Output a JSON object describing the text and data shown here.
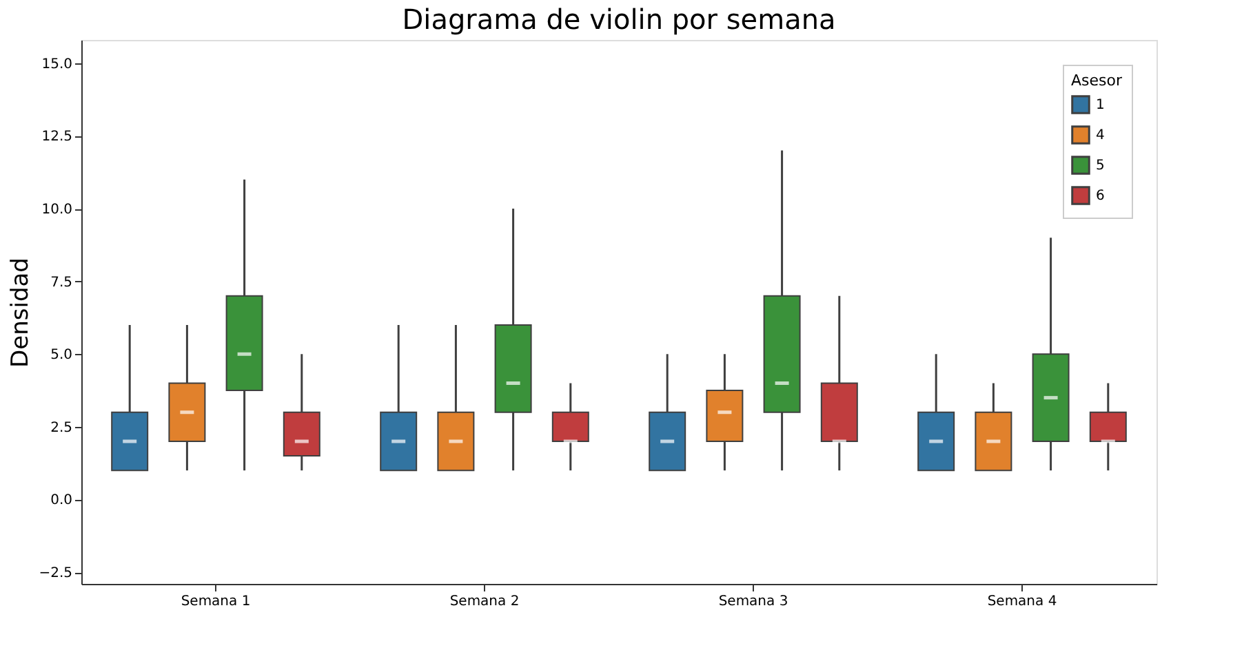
{
  "chart_data": {
    "type": "box",
    "title": "Diagrama de violin por semana",
    "ylabel": "Densidad",
    "legend_title": "Asesor",
    "categories": [
      "Semana 1",
      "Semana 2",
      "Semana 3",
      "Semana 4"
    ],
    "ylim": [
      -2.9,
      15.8
    ],
    "yticks": [
      {
        "value": -2.5,
        "label": "−2.5"
      },
      {
        "value": 0,
        "label": "0.0"
      },
      {
        "value": 2.5,
        "label": "2.5"
      },
      {
        "value": 5,
        "label": "5.0"
      },
      {
        "value": 7.5,
        "label": "7.5"
      },
      {
        "value": 10,
        "label": "10.0"
      },
      {
        "value": 12.5,
        "label": "12.5"
      },
      {
        "value": 15,
        "label": "15.0"
      }
    ],
    "grid": false,
    "legend": "top right",
    "series": [
      {
        "name": "1",
        "color": "#3274a1",
        "boxes": [
          {
            "low": 1,
            "q1": 1,
            "median": 2,
            "q3": 3,
            "high": 6
          },
          {
            "low": 1,
            "q1": 1,
            "median": 2,
            "q3": 3,
            "high": 6
          },
          {
            "low": 1,
            "q1": 1,
            "median": 2,
            "q3": 3,
            "high": 5
          },
          {
            "low": 1,
            "q1": 1,
            "median": 2,
            "q3": 3,
            "high": 5
          }
        ]
      },
      {
        "name": "4",
        "color": "#e1812c",
        "boxes": [
          {
            "low": 1,
            "q1": 2,
            "median": 3,
            "q3": 4,
            "high": 6
          },
          {
            "low": 1,
            "q1": 1,
            "median": 2,
            "q3": 3,
            "high": 6
          },
          {
            "low": 1,
            "q1": 2,
            "median": 3,
            "q3": 3.75,
            "high": 5
          },
          {
            "low": 1,
            "q1": 1,
            "median": 2,
            "q3": 3,
            "high": 4
          }
        ]
      },
      {
        "name": "5",
        "color": "#3a923a",
        "boxes": [
          {
            "low": 1,
            "q1": 3.75,
            "median": 5,
            "q3": 7,
            "high": 11
          },
          {
            "low": 1,
            "q1": 3,
            "median": 4,
            "q3": 6,
            "high": 10
          },
          {
            "low": 1,
            "q1": 3,
            "median": 4,
            "q3": 7,
            "high": 12
          },
          {
            "low": 1,
            "q1": 2,
            "median": 3.5,
            "q3": 5,
            "high": 9
          }
        ]
      },
      {
        "name": "6",
        "color": "#c03d3e",
        "boxes": [
          {
            "low": 1,
            "q1": 1.5,
            "median": 2,
            "q3": 3,
            "high": 5
          },
          {
            "low": 1,
            "q1": 2,
            "median": 2,
            "q3": 3,
            "high": 4
          },
          {
            "low": 1,
            "q1": 2,
            "median": 2,
            "q3": 4,
            "high": 7
          },
          {
            "low": 1,
            "q1": 2,
            "median": 2,
            "q3": 3,
            "high": 4
          }
        ]
      }
    ]
  }
}
